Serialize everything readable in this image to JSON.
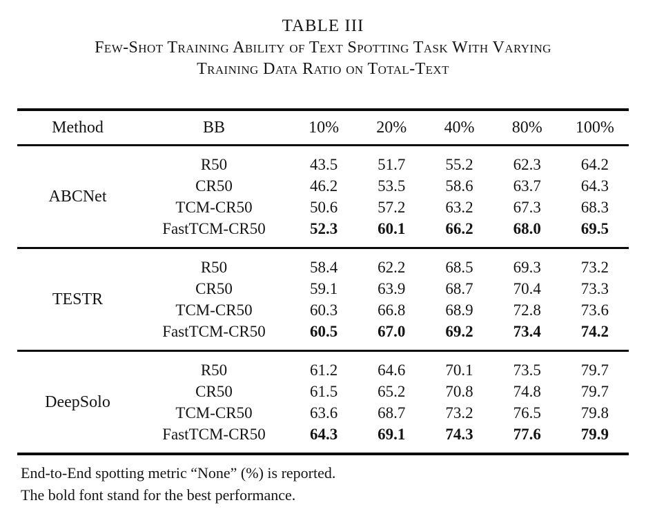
{
  "title": "TABLE III",
  "caption": {
    "line1": "Few-Shot Training Ability of Text Spotting Task With Varying",
    "line2": "Training Data Ratio on Total-Text"
  },
  "table": {
    "columns": [
      "Method",
      "BB",
      "10%",
      "20%",
      "40%",
      "80%",
      "100%"
    ],
    "groups": [
      {
        "method": "ABCNet",
        "rows": [
          {
            "bb": "R50",
            "values": [
              "43.5",
              "51.7",
              "55.2",
              "62.3",
              "64.2"
            ],
            "bold": false
          },
          {
            "bb": "CR50",
            "values": [
              "46.2",
              "53.5",
              "58.6",
              "63.7",
              "64.3"
            ],
            "bold": false
          },
          {
            "bb": "TCM-CR50",
            "values": [
              "50.6",
              "57.2",
              "63.2",
              "67.3",
              "68.3"
            ],
            "bold": false
          },
          {
            "bb": "FastTCM-CR50",
            "values": [
              "52.3",
              "60.1",
              "66.2",
              "68.0",
              "69.5"
            ],
            "bold": true
          }
        ]
      },
      {
        "method": "TESTR",
        "rows": [
          {
            "bb": "R50",
            "values": [
              "58.4",
              "62.2",
              "68.5",
              "69.3",
              "73.2"
            ],
            "bold": false
          },
          {
            "bb": "CR50",
            "values": [
              "59.1",
              "63.9",
              "68.7",
              "70.4",
              "73.3"
            ],
            "bold": false
          },
          {
            "bb": "TCM-CR50",
            "values": [
              "60.3",
              "66.8",
              "68.9",
              "72.8",
              "73.6"
            ],
            "bold": false
          },
          {
            "bb": "FastTCM-CR50",
            "values": [
              "60.5",
              "67.0",
              "69.2",
              "73.4",
              "74.2"
            ],
            "bold": true
          }
        ]
      },
      {
        "method": "DeepSolo",
        "rows": [
          {
            "bb": "R50",
            "values": [
              "61.2",
              "64.6",
              "70.1",
              "73.5",
              "79.7"
            ],
            "bold": false
          },
          {
            "bb": "CR50",
            "values": [
              "61.5",
              "65.2",
              "70.8",
              "74.8",
              "79.7"
            ],
            "bold": false
          },
          {
            "bb": "TCM-CR50",
            "values": [
              "63.6",
              "68.7",
              "73.2",
              "76.5",
              "79.8"
            ],
            "bold": false
          },
          {
            "bb": "FastTCM-CR50",
            "values": [
              "64.3",
              "69.1",
              "74.3",
              "77.6",
              "79.9"
            ],
            "bold": true
          }
        ]
      }
    ]
  },
  "footnotes": {
    "line1": "End-to-End spotting metric “None” (%) is reported.",
    "line2": "The bold font stand for the best performance."
  }
}
